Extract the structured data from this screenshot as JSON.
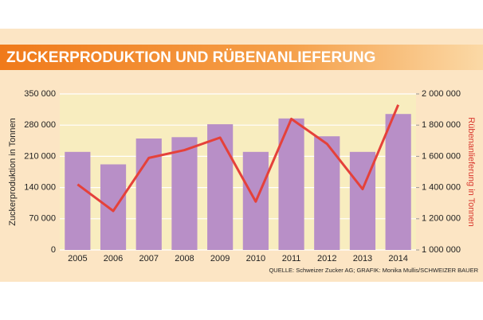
{
  "chart_data": {
    "type": "bar",
    "title": "ZUCKERPRODUKTION UND RÜBENANLIEFERUNG",
    "y_label": "Zuckerproduktion in Tonnen",
    "y2_label": "Rübenanlieferung in Tonnen",
    "source": "QUELLE: Schweizer Zucker AG; GRAFIK: Monika Mullis/SCHWEIZER BAUER",
    "categories": [
      "2005",
      "2006",
      "2007",
      "2008",
      "2009",
      "2010",
      "2011",
      "2012",
      "2013",
      "2014"
    ],
    "series": [
      {
        "type": "bar",
        "axis": "y",
        "color": "#b88fc7",
        "values": [
          220000,
          192000,
          250000,
          253000,
          282000,
          220000,
          295000,
          255000,
          220000,
          305000
        ]
      },
      {
        "type": "line",
        "axis": "y2",
        "color": "#e5413a",
        "values": [
          1420000,
          1250000,
          1590000,
          1640000,
          1720000,
          1310000,
          1840000,
          1680000,
          1390000,
          1930000
        ]
      }
    ],
    "ylim": [
      0,
      350000
    ],
    "yticks": [
      0,
      {
        "value": 70000,
        "label": "70 000"
      },
      {
        "value": 140000,
        "label": "140 000"
      },
      {
        "value": 210000,
        "label": "210 000"
      },
      {
        "value": 280000,
        "label": "280 000"
      },
      {
        "value": 350000,
        "label": "350 000"
      }
    ],
    "y2lim": [
      1000000,
      2000000
    ],
    "y2ticks": [
      {
        "value": 1000000,
        "label": "1 000 000"
      },
      {
        "value": 1200000,
        "label": "1 200 000"
      },
      {
        "value": 1400000,
        "label": "1 400 000"
      },
      {
        "value": 1600000,
        "label": "1 600 000"
      },
      {
        "value": 1800000,
        "label": "1 800 000"
      },
      {
        "value": 2000000,
        "label": "2 000 000"
      }
    ],
    "grid": true
  }
}
